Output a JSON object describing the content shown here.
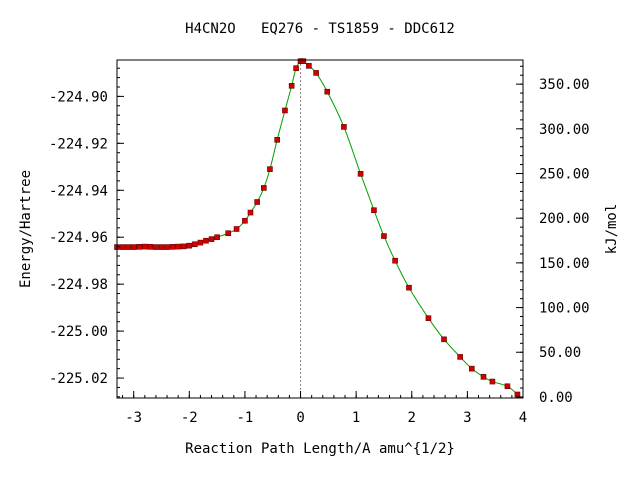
{
  "chart_data": {
    "type": "line",
    "title": "H4CN2O   EQ276 - TS1859 - DDC612",
    "xlabel": "Reaction Path Length/A amu^{1/2}",
    "ylabel_left": "Energy/Hartree",
    "ylabel_right": "kJ/mol",
    "xlim": [
      -3.3,
      4.0
    ],
    "ylim": [
      -225.0285,
      -224.8845
    ],
    "y2lim": [
      -1.2,
      377.0
    ],
    "x_ticks": [
      -3,
      -2,
      -1,
      0,
      1,
      2,
      3,
      4
    ],
    "x_tick_labels": [
      "-3",
      "-2",
      "-1",
      "0",
      "1",
      "2",
      "3",
      "4"
    ],
    "y_ticks": [
      -224.9,
      -224.92,
      -224.94,
      -224.96,
      -224.98,
      -225.0,
      -225.02
    ],
    "y_tick_labels": [
      "-224.90",
      "-224.92",
      "-224.94",
      "-224.96",
      "-224.98",
      "-225.00",
      "-225.02"
    ],
    "y2_ticks": [
      0,
      50,
      100,
      150,
      200,
      250,
      300,
      350
    ],
    "y2_tick_labels": [
      "0.00",
      "50.00",
      "100.00",
      "150.00",
      "200.00",
      "250.00",
      "300.00",
      "350.00"
    ],
    "ts_marker_x": 0,
    "line_color": "#00a000",
    "marker_color": "#d00000",
    "ts_line_color": "#888888",
    "x": [
      -3.3,
      -3.2,
      -3.1,
      -3.0,
      -2.9,
      -2.8,
      -2.7,
      -2.6,
      -2.5,
      -2.4,
      -2.3,
      -2.2,
      -2.1,
      -2.0,
      -1.9,
      -1.8,
      -1.7,
      -1.6,
      -1.5,
      -1.3,
      -1.15,
      -1.0,
      -0.9,
      -0.78,
      -0.66,
      -0.55,
      -0.42,
      -0.28,
      -0.16,
      -0.08,
      0.0,
      0.05,
      0.15,
      0.28,
      0.48,
      0.78,
      1.08,
      1.32,
      1.5,
      1.7,
      1.95,
      2.3,
      2.58,
      2.87,
      3.08,
      3.29,
      3.45,
      3.72,
      3.9
    ],
    "y": [
      -224.9642,
      -224.9642,
      -224.9642,
      -224.9642,
      -224.9641,
      -224.964,
      -224.9641,
      -224.9642,
      -224.9642,
      -224.9642,
      -224.9641,
      -224.964,
      -224.9639,
      -224.9636,
      -224.963,
      -224.9623,
      -224.9615,
      -224.9608,
      -224.96,
      -224.9583,
      -224.9565,
      -224.953,
      -224.9495,
      -224.945,
      -224.939,
      -224.931,
      -224.9185,
      -224.906,
      -224.8955,
      -224.888,
      -224.885,
      -224.885,
      -224.887,
      -224.89,
      -224.898,
      -224.913,
      -224.933,
      -224.9485,
      -224.9595,
      -224.97,
      -224.9815,
      -224.9945,
      -225.0035,
      -225.011,
      -225.016,
      -225.0195,
      -225.0215,
      -225.0235,
      -225.027
    ]
  }
}
